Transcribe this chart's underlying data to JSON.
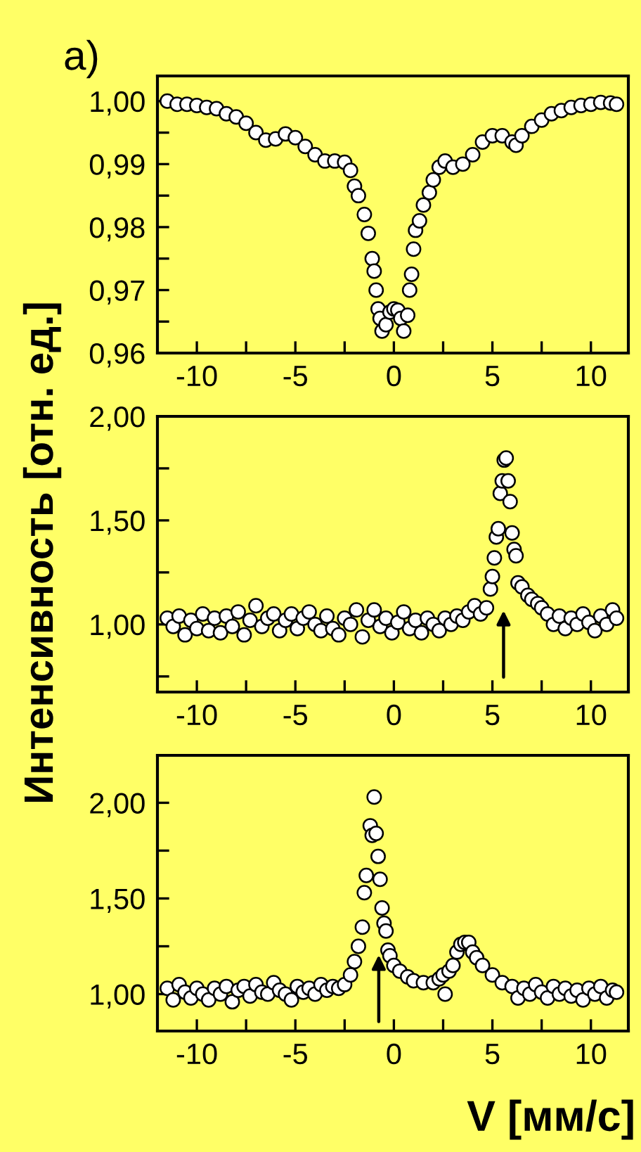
{
  "chart_data": [
    {
      "type": "scatter",
      "annotations": [
        "a)"
      ],
      "marker": "circle",
      "line_style": "none",
      "grid": false,
      "legend": false,
      "xlim": [
        -12,
        11.9
      ],
      "ylim": [
        0.96,
        1.004
      ],
      "xticks": [
        -10,
        {
          "value": -7.5,
          "label": null
        },
        -5,
        {
          "value": -2.5,
          "label": null
        },
        0,
        {
          "value": 2.5,
          "label": null
        },
        5,
        {
          "value": 7.5,
          "label": null
        },
        10
      ],
      "yticks": [
        {
          "value": 0.96,
          "label": "0,96"
        },
        {
          "value": 0.965,
          "label": null
        },
        {
          "value": 0.97,
          "label": "0,97"
        },
        {
          "value": 0.975,
          "label": null
        },
        {
          "value": 0.98,
          "label": "0,98"
        },
        {
          "value": 0.985,
          "label": null
        },
        {
          "value": 0.99,
          "label": "0,99"
        },
        {
          "value": 0.995,
          "label": null
        },
        {
          "value": 1.0,
          "label": "1,00"
        }
      ],
      "series": [
        {
          "color": "#ffffff",
          "x": [
            -11.5,
            -11.0,
            -10.5,
            -10.0,
            -9.5,
            -9.0,
            -8.5,
            -8.0,
            -7.5,
            -7.0,
            -6.5,
            -6.0,
            -5.5,
            -5.0,
            -4.5,
            -4.0,
            -3.5,
            -3.0,
            -2.5,
            -2.2,
            -2.0,
            -1.8,
            -1.5,
            -1.3,
            -1.1,
            -1.0,
            -0.9,
            -0.8,
            -0.7,
            -0.6,
            -0.4,
            -0.2,
            0.0,
            0.2,
            0.35,
            0.5,
            0.7,
            0.8,
            0.9,
            1.0,
            1.1,
            1.3,
            1.5,
            1.8,
            2.0,
            2.3,
            2.6,
            3.0,
            3.5,
            4.0,
            4.5,
            5.0,
            5.5,
            6.0,
            6.2,
            6.5,
            7.0,
            7.5,
            8.0,
            8.5,
            9.0,
            9.5,
            10.0,
            10.5,
            11.0,
            11.3
          ],
          "values": [
            1.0,
            0.9995,
            0.9995,
            0.9993,
            0.999,
            0.9988,
            0.998,
            0.9975,
            0.9965,
            0.995,
            0.9938,
            0.994,
            0.9948,
            0.9942,
            0.9928,
            0.9915,
            0.9905,
            0.9905,
            0.9903,
            0.989,
            0.9865,
            0.985,
            0.982,
            0.979,
            0.975,
            0.973,
            0.97,
            0.967,
            0.9655,
            0.9635,
            0.9645,
            0.9665,
            0.967,
            0.9668,
            0.9655,
            0.9635,
            0.966,
            0.97,
            0.9725,
            0.9765,
            0.9795,
            0.981,
            0.9835,
            0.9855,
            0.9875,
            0.9895,
            0.9905,
            0.9895,
            0.99,
            0.9915,
            0.9935,
            0.9945,
            0.9945,
            0.9935,
            0.993,
            0.9945,
            0.996,
            0.997,
            0.998,
            0.9985,
            0.999,
            0.9993,
            0.9995,
            0.9998,
            0.9997,
            0.9995
          ]
        }
      ]
    },
    {
      "type": "scatter",
      "ylabel": "Интенсивность [отн. ед.]",
      "marker": "circle",
      "line_style": "none",
      "grid": false,
      "legend": false,
      "xlim": [
        -12,
        11.9
      ],
      "ylim": [
        0.675,
        2.0
      ],
      "xticks": [
        -10,
        {
          "value": -7.5,
          "label": null
        },
        -5,
        {
          "value": -2.5,
          "label": null
        },
        0,
        {
          "value": 2.5,
          "label": null
        },
        5,
        {
          "value": 7.5,
          "label": null
        },
        10
      ],
      "yticks": [
        {
          "value": 0.75,
          "label": null
        },
        {
          "value": 1.0,
          "label": "1,00"
        },
        {
          "value": 1.25,
          "label": null
        },
        {
          "value": 1.5,
          "label": "1,50"
        },
        {
          "value": 1.75,
          "label": null
        },
        {
          "value": 2.0,
          "label": "2,00"
        }
      ],
      "series": [
        {
          "color": "#ffffff",
          "x": [
            -11.5,
            -11.2,
            -10.9,
            -10.6,
            -10.3,
            -10.0,
            -9.7,
            -9.4,
            -9.1,
            -8.8,
            -8.5,
            -8.2,
            -7.9,
            -7.6,
            -7.3,
            -7.0,
            -6.7,
            -6.4,
            -6.1,
            -5.8,
            -5.5,
            -5.2,
            -4.9,
            -4.6,
            -4.3,
            -4.0,
            -3.7,
            -3.4,
            -3.1,
            -2.8,
            -2.5,
            -2.2,
            -1.9,
            -1.6,
            -1.3,
            -1.0,
            -0.7,
            -0.4,
            -0.1,
            0.2,
            0.5,
            0.8,
            1.1,
            1.4,
            1.7,
            2.0,
            2.3,
            2.6,
            2.9,
            3.2,
            3.5,
            3.8,
            4.1,
            4.4,
            4.7,
            4.9,
            5.0,
            5.1,
            5.2,
            5.3,
            5.4,
            5.5,
            5.6,
            5.7,
            5.8,
            5.9,
            6.0,
            6.1,
            6.2,
            6.3,
            6.5,
            6.8,
            7.0,
            7.3,
            7.5,
            7.8,
            8.1,
            8.4,
            8.7,
            9.0,
            9.3,
            9.6,
            9.9,
            10.2,
            10.5,
            10.8,
            11.1,
            11.3
          ],
          "values": [
            1.03,
            0.99,
            1.04,
            0.95,
            1.02,
            0.98,
            1.05,
            0.97,
            1.03,
            0.96,
            1.04,
            0.99,
            1.06,
            0.95,
            1.02,
            1.09,
            0.99,
            1.03,
            1.05,
            0.97,
            1.02,
            1.05,
            0.98,
            1.03,
            1.06,
            1.0,
            0.97,
            1.04,
            0.98,
            0.95,
            1.03,
            1.0,
            1.07,
            0.94,
            1.02,
            1.07,
            0.99,
            1.03,
            0.96,
            1.01,
            1.06,
            0.98,
            1.02,
            0.96,
            1.03,
            1.0,
            0.97,
            1.03,
            1.0,
            1.04,
            1.02,
            1.06,
            1.09,
            1.05,
            1.08,
            1.17,
            1.23,
            1.32,
            1.42,
            1.46,
            1.63,
            1.69,
            1.79,
            1.8,
            1.69,
            1.59,
            1.44,
            1.36,
            1.33,
            1.2,
            1.18,
            1.14,
            1.12,
            1.1,
            1.08,
            1.05,
            1.0,
            1.04,
            0.98,
            1.03,
            1.0,
            1.05,
            1.01,
            0.97,
            1.04,
            1.0,
            1.07,
            1.03
          ]
        }
      ]
    },
    {
      "type": "scatter",
      "xlabel": "V [мм/с]",
      "marker": "circle",
      "line_style": "none",
      "grid": false,
      "legend": false,
      "xlim": [
        -12,
        11.9
      ],
      "ylim": [
        0.807,
        2.248
      ],
      "xticks": [
        -10,
        {
          "value": -7.5,
          "label": null
        },
        -5,
        {
          "value": -2.5,
          "label": null
        },
        0,
        {
          "value": 2.5,
          "label": null
        },
        5,
        {
          "value": 7.5,
          "label": null
        },
        10
      ],
      "yticks": [
        {
          "value": 1.0,
          "label": "1,00"
        },
        {
          "value": 1.25,
          "label": null
        },
        {
          "value": 1.5,
          "label": "1,50"
        },
        {
          "value": 1.75,
          "label": null
        },
        {
          "value": 2.0,
          "label": "2,00"
        }
      ],
      "series": [
        {
          "color": "#ffffff",
          "x": [
            -11.5,
            -11.2,
            -10.9,
            -10.6,
            -10.3,
            -10.0,
            -9.7,
            -9.4,
            -9.1,
            -8.8,
            -8.5,
            -8.2,
            -7.9,
            -7.6,
            -7.3,
            -7.0,
            -6.7,
            -6.4,
            -6.1,
            -5.8,
            -5.5,
            -5.2,
            -4.9,
            -4.6,
            -4.3,
            -4.0,
            -3.7,
            -3.4,
            -3.1,
            -2.8,
            -2.5,
            -2.2,
            -2.0,
            -1.8,
            -1.6,
            -1.5,
            -1.4,
            -1.2,
            -1.1,
            -1.0,
            -0.9,
            -0.8,
            -0.7,
            -0.6,
            -0.5,
            -0.4,
            -0.3,
            -0.2,
            0.0,
            0.3,
            0.7,
            1.0,
            1.5,
            2.0,
            2.3,
            2.5,
            2.6,
            2.8,
            3.0,
            3.2,
            3.4,
            3.6,
            3.8,
            4.0,
            4.2,
            4.5,
            5.0,
            5.5,
            6.0,
            6.3,
            6.6,
            6.9,
            7.2,
            7.5,
            7.8,
            8.1,
            8.4,
            8.7,
            9.0,
            9.3,
            9.6,
            9.9,
            10.2,
            10.5,
            10.8,
            11.1,
            11.3
          ],
          "values": [
            1.03,
            0.97,
            1.05,
            1.01,
            0.98,
            1.03,
            1.0,
            0.97,
            1.03,
            1.0,
            1.04,
            0.96,
            1.02,
            1.04,
            0.99,
            1.05,
            1.01,
            1.0,
            1.06,
            1.02,
            1.0,
            0.97,
            1.04,
            1.01,
            1.03,
            1.0,
            1.05,
            1.02,
            1.04,
            1.03,
            1.05,
            1.1,
            1.17,
            1.25,
            1.35,
            1.53,
            1.62,
            1.88,
            1.83,
            2.03,
            1.84,
            1.72,
            1.6,
            1.45,
            1.37,
            1.33,
            1.23,
            1.2,
            1.15,
            1.12,
            1.09,
            1.07,
            1.06,
            1.06,
            1.08,
            1.1,
            1.0,
            1.12,
            1.15,
            1.22,
            1.26,
            1.27,
            1.27,
            1.22,
            1.19,
            1.15,
            1.1,
            1.06,
            1.04,
            0.98,
            1.03,
            1.0,
            1.05,
            1.01,
            0.98,
            1.04,
            1.0,
            1.03,
            0.99,
            1.02,
            0.97,
            1.03,
            1.0,
            1.04,
            0.98,
            1.02,
            1.01
          ]
        }
      ]
    }
  ]
}
